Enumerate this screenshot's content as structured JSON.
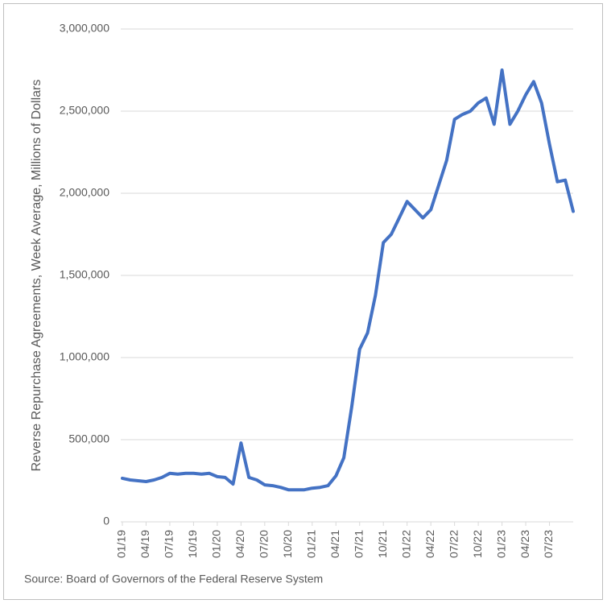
{
  "chart_data": {
    "type": "line",
    "y_label": "Reverse Repurchase Agreements, Week Average, Millions of Dollars",
    "source": "Source: Board of Governors of the Federal Reserve System",
    "x": [
      "2019-01",
      "2019-02",
      "2019-03",
      "2019-04",
      "2019-05",
      "2019-06",
      "2019-07",
      "2019-08",
      "2019-09",
      "2019-10",
      "2019-11",
      "2019-12",
      "2020-01",
      "2020-02",
      "2020-03",
      "2020-04",
      "2020-05",
      "2020-06",
      "2020-07",
      "2020-08",
      "2020-09",
      "2020-10",
      "2020-11",
      "2020-12",
      "2021-01",
      "2021-02",
      "2021-03",
      "2021-04",
      "2021-05",
      "2021-06",
      "2021-07",
      "2021-08",
      "2021-09",
      "2021-10",
      "2021-11",
      "2021-12",
      "2022-01",
      "2022-02",
      "2022-03",
      "2022-04",
      "2022-05",
      "2022-06",
      "2022-07",
      "2022-08",
      "2022-09",
      "2022-10",
      "2022-11",
      "2022-12",
      "2023-01",
      "2023-02",
      "2023-03",
      "2023-04",
      "2023-05",
      "2023-06",
      "2023-07",
      "2023-08",
      "2023-09",
      "2023-10"
    ],
    "series": [
      {
        "name": "Reverse Repurchase Agreements",
        "color": "#4472c4",
        "values": [
          265000,
          255000,
          250000,
          245000,
          255000,
          270000,
          295000,
          290000,
          295000,
          295000,
          290000,
          295000,
          275000,
          270000,
          230000,
          480000,
          270000,
          255000,
          225000,
          220000,
          210000,
          195000,
          195000,
          195000,
          205000,
          210000,
          220000,
          280000,
          390000,
          700000,
          1050000,
          1150000,
          1380000,
          1700000,
          1750000,
          1850000,
          1950000,
          1900000,
          1850000,
          1900000,
          2050000,
          2200000,
          2450000,
          2480000,
          2500000,
          2550000,
          2580000,
          2420000,
          2750000,
          2420000,
          2500000,
          2600000,
          2680000,
          2550000,
          2300000,
          2070000,
          2080000,
          1890000
        ]
      }
    ],
    "xlim": [
      "2019-01",
      "2023-10"
    ],
    "xticks": [
      {
        "value": "2019-01",
        "label": "01/19"
      },
      {
        "value": "2019-04",
        "label": "04/19"
      },
      {
        "value": "2019-07",
        "label": "07/19"
      },
      {
        "value": "2019-10",
        "label": "10/19"
      },
      {
        "value": "2020-01",
        "label": "01/20"
      },
      {
        "value": "2020-04",
        "label": "04/20"
      },
      {
        "value": "2020-07",
        "label": "07/20"
      },
      {
        "value": "2020-10",
        "label": "10/20"
      },
      {
        "value": "2021-01",
        "label": "01/21"
      },
      {
        "value": "2021-04",
        "label": "04/21"
      },
      {
        "value": "2021-07",
        "label": "07/21"
      },
      {
        "value": "2021-10",
        "label": "10/21"
      },
      {
        "value": "2022-01",
        "label": "01/22"
      },
      {
        "value": "2022-04",
        "label": "04/22"
      },
      {
        "value": "2022-07",
        "label": "07/22"
      },
      {
        "value": "2022-10",
        "label": "10/22"
      },
      {
        "value": "2023-01",
        "label": "01/23"
      },
      {
        "value": "2023-04",
        "label": "04/23"
      },
      {
        "value": "2023-07",
        "label": "07/23"
      }
    ],
    "ylim": [
      0,
      3000000
    ],
    "yticks": [
      0,
      {
        "value": 500000,
        "label": "500,000"
      },
      {
        "value": 1000000,
        "label": "1,000,000"
      },
      {
        "value": 1500000,
        "label": "1,500,000"
      },
      {
        "value": 2000000,
        "label": "2,000,000"
      },
      {
        "value": 2500000,
        "label": "2,500,000"
      },
      {
        "value": 3000000,
        "label": "3,000,000"
      }
    ],
    "grid": true
  }
}
